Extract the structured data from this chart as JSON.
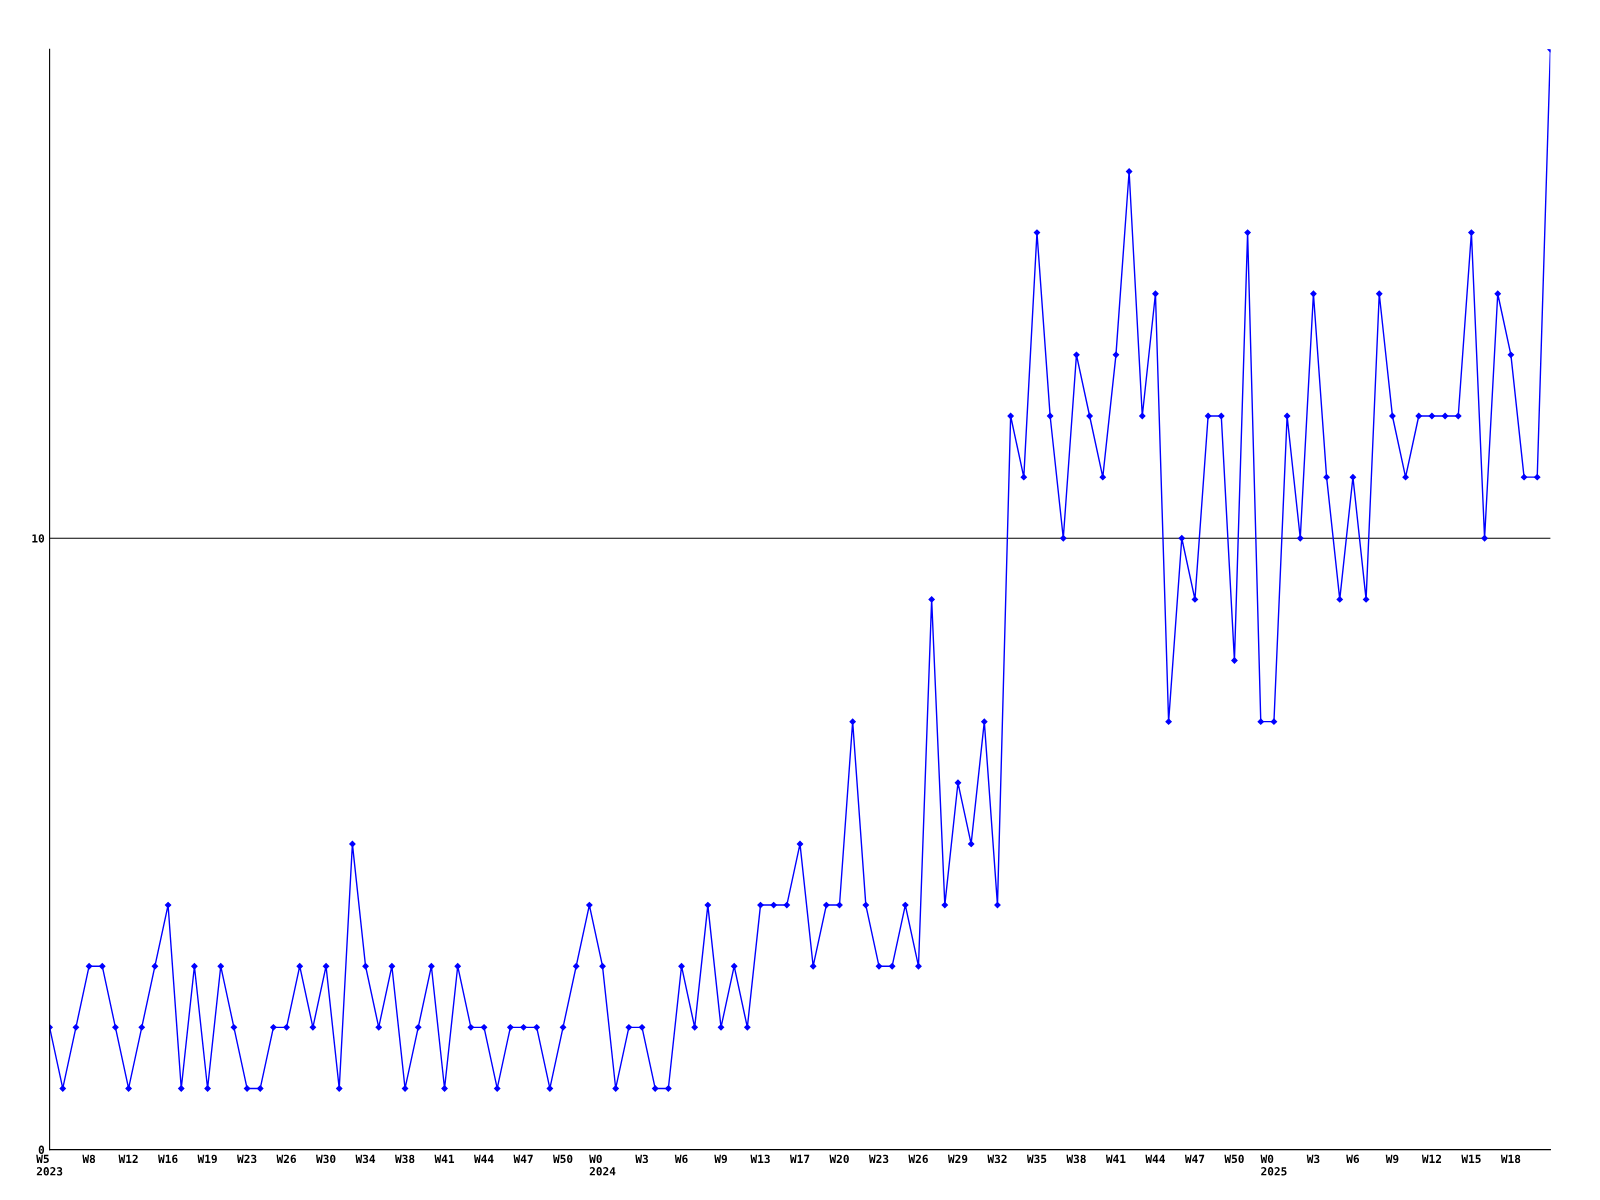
{
  "chart_data": {
    "type": "line",
    "categories": [
      "W5\n2023",
      null,
      null,
      "W8",
      null,
      null,
      "W12",
      null,
      null,
      "W16",
      null,
      null,
      "W19",
      null,
      null,
      "W23",
      null,
      null,
      "W26",
      null,
      null,
      "W30",
      null,
      null,
      "W34",
      null,
      null,
      "W38",
      null,
      null,
      "W41",
      null,
      null,
      "W44",
      null,
      null,
      "W47",
      null,
      null,
      "W50",
      null,
      null,
      "W0\n2024",
      null,
      null,
      "W3",
      null,
      null,
      "W6",
      null,
      null,
      "W9",
      null,
      null,
      "W13",
      null,
      null,
      "W17",
      null,
      null,
      "W20",
      null,
      null,
      "W23",
      null,
      null,
      "W26",
      null,
      null,
      "W29",
      null,
      null,
      "W32",
      null,
      null,
      "W35",
      null,
      null,
      "W38",
      null,
      null,
      "W41",
      null,
      null,
      "W44",
      null,
      null,
      "W47",
      null,
      null,
      "W50",
      null,
      null,
      "W0\n2025",
      null,
      null,
      "W3",
      null,
      null,
      "W6",
      null,
      null,
      "W9",
      null,
      null,
      "W12",
      null,
      null,
      "W15",
      null,
      null,
      "W18",
      null,
      null,
      null
    ],
    "series": [
      {
        "color": "#0000ff",
        "values": [
          2,
          1,
          2,
          3,
          3,
          2,
          1,
          2,
          3,
          4,
          1,
          3,
          1,
          3,
          2,
          1,
          1,
          2,
          2,
          3,
          2,
          3,
          1,
          5,
          3,
          2,
          3,
          1,
          2,
          3,
          1,
          3,
          2,
          2,
          1,
          2,
          2,
          2,
          1,
          2,
          3,
          4,
          3,
          1,
          2,
          2,
          1,
          1,
          3,
          2,
          4,
          2,
          3,
          2,
          4,
          4,
          4,
          5,
          3,
          4,
          4,
          7,
          4,
          3,
          3,
          4,
          3,
          9,
          4,
          6,
          5,
          7,
          4,
          12,
          11,
          15,
          12,
          10,
          13,
          12,
          11,
          13,
          16,
          12,
          14,
          7,
          10,
          9,
          12,
          12,
          8,
          15,
          7,
          7,
          12,
          10,
          14,
          11,
          9,
          11,
          9,
          14,
          12,
          11,
          12,
          12,
          12,
          12,
          15,
          10,
          14,
          13,
          11,
          11,
          18
        ]
      }
    ],
    "ylim": [
      0,
      18
    ],
    "yticks": [
      0,
      10
    ],
    "grid": "y",
    "marker": "diamond",
    "line_style": "solid",
    "legend": false
  }
}
